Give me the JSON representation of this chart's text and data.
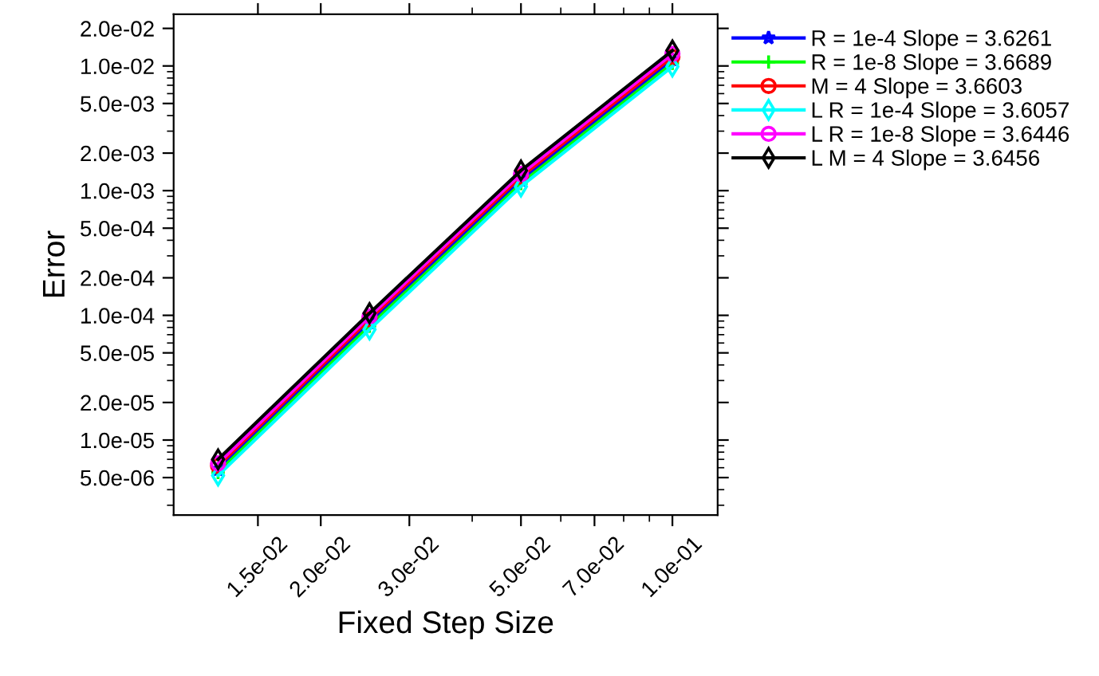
{
  "chart_data": {
    "type": "line",
    "xlabel": "Fixed Step Size",
    "ylabel": "Error",
    "log": "xy",
    "grid": false,
    "legend": "top right",
    "line_style": "solid",
    "x": [
      0.0125,
      0.025,
      0.05,
      0.1
    ],
    "xlim": [
      0.0102,
      0.123
    ],
    "xticks": [
      {
        "value": 0.015,
        "label": "1.5e-02"
      },
      {
        "value": 0.02,
        "label": "2.0e-02"
      },
      {
        "value": 0.03,
        "label": "3.0e-02"
      },
      {
        "value": 0.05,
        "label": "5.0e-02"
      },
      {
        "value": 0.07,
        "label": "7.0e-02"
      },
      {
        "value": 0.1,
        "label": "1.0e-01"
      }
    ],
    "ylim": [
      2.5e-06,
      0.026
    ],
    "yticks": [
      {
        "value": 5e-06,
        "label": "5.0e-06"
      },
      {
        "value": 1e-05,
        "label": "1.0e-05"
      },
      {
        "value": 2e-05,
        "label": "2.0e-05"
      },
      {
        "value": 5e-05,
        "label": "5.0e-05"
      },
      {
        "value": 0.0001,
        "label": "1.0e-04"
      },
      {
        "value": 0.0002,
        "label": "2.0e-04"
      },
      {
        "value": 0.0005,
        "label": "5.0e-04"
      },
      {
        "value": 0.001,
        "label": "1.0e-03"
      },
      {
        "value": 0.002,
        "label": "2.0e-03"
      },
      {
        "value": 0.005,
        "label": "5.0e-03"
      },
      {
        "value": 0.01,
        "label": "1.0e-02"
      },
      {
        "value": 0.02,
        "label": "2.0e-02"
      }
    ],
    "series": [
      {
        "name": "R = 1e-4 Slope = 3.6261",
        "color": "#0000ff",
        "marker": "star",
        "values": [
          5.8e-06,
          8.7e-05,
          0.00121,
          0.0112
        ]
      },
      {
        "name": "R = 1e-8 Slope = 3.6689",
        "color": "#00ff00",
        "marker": "cross",
        "values": [
          5.5e-06,
          8.2e-05,
          0.00114,
          0.0105
        ]
      },
      {
        "name": "M = 4 Slope = 3.6603",
        "color": "#ff0000",
        "marker": "circle",
        "values": [
          6.2e-06,
          9.3e-05,
          0.00129,
          0.0118
        ]
      },
      {
        "name": "L R = 1e-4 Slope = 3.6057",
        "color": "#00ffff",
        "marker": "diamond",
        "values": [
          5.2e-06,
          7.7e-05,
          0.00108,
          0.0099
        ]
      },
      {
        "name": "L R = 1e-8 Slope = 3.6446",
        "color": "#ff00ff",
        "marker": "circle",
        "values": [
          6.5e-06,
          9.8e-05,
          0.00136,
          0.0125
        ]
      },
      {
        "name": "L M = 4 Slope = 3.6456",
        "color": "#000000",
        "marker": "diamond",
        "values": [
          7e-06,
          0.000104,
          0.00145,
          0.0133
        ]
      }
    ]
  }
}
